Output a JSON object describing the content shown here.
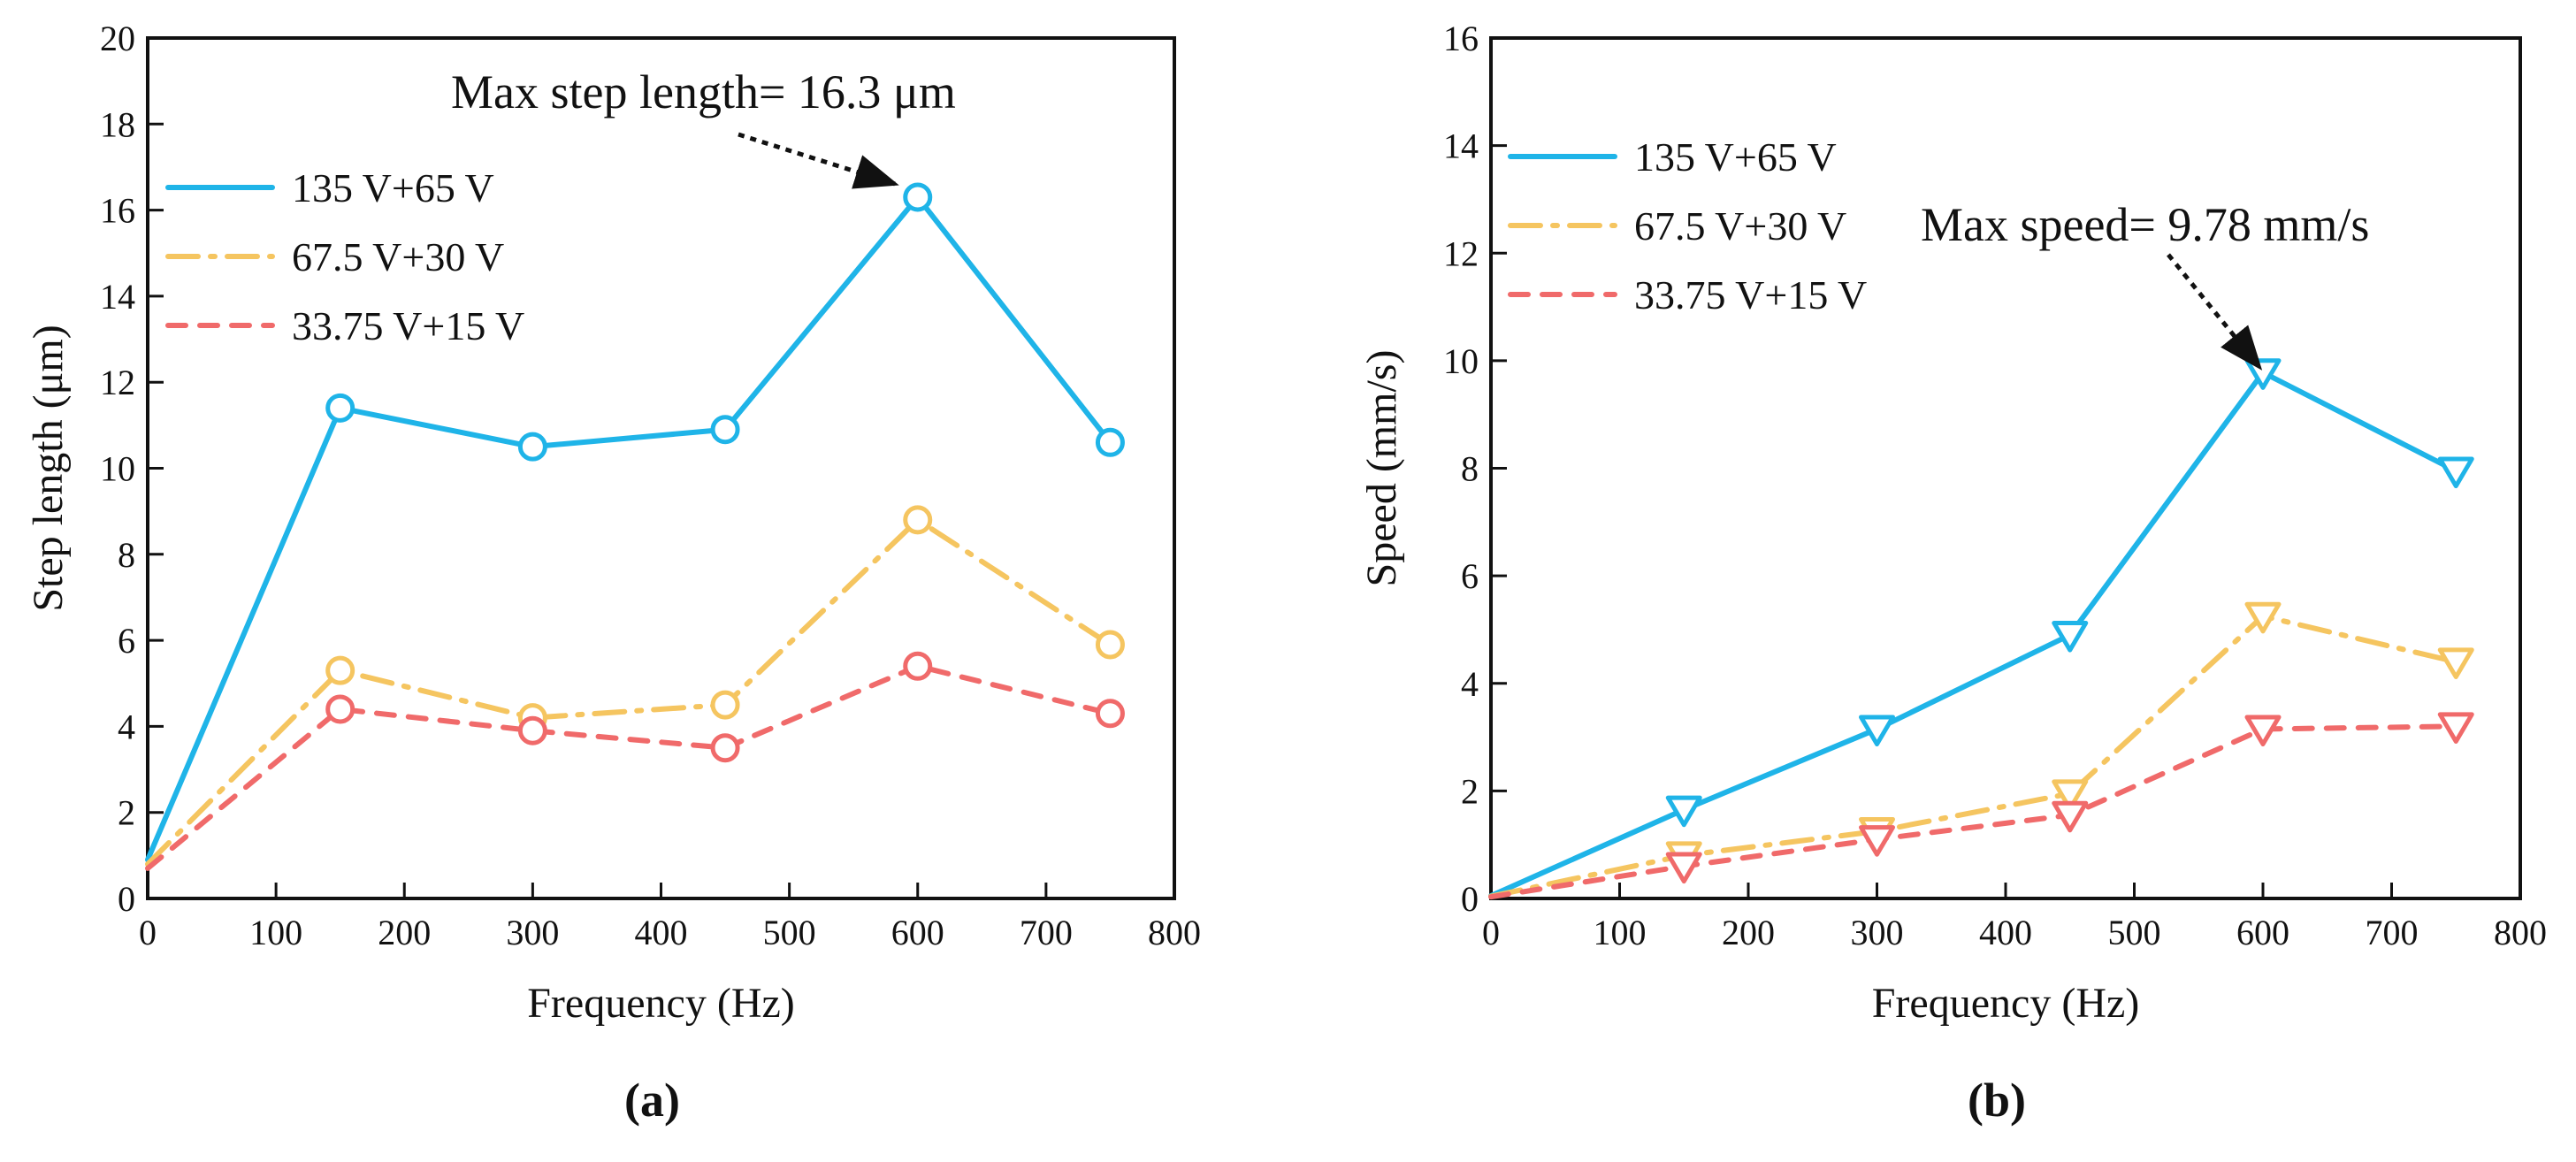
{
  "chart_data": [
    {
      "type": "line",
      "panel_label": "(a)",
      "title": "",
      "xlabel": "Frequency (Hz)",
      "ylabel": "Step length (μm)",
      "xlim": [
        0,
        800
      ],
      "ylim": [
        0,
        20
      ],
      "xticks": [
        "0",
        "100",
        "200",
        "300",
        "400",
        "500",
        "600",
        "700",
        "800"
      ],
      "yticks": [
        "0",
        "2",
        "4",
        "6",
        "8",
        "10",
        "12",
        "14",
        "16",
        "18",
        "20"
      ],
      "x": [
        0,
        150,
        300,
        450,
        600,
        750
      ],
      "marker": "circle",
      "legend_position": "top-left",
      "series": [
        {
          "name": "135 V+65 V",
          "color": "#1fb4e8",
          "style": "solid",
          "values": [
            0.9,
            11.4,
            10.5,
            10.9,
            16.3,
            10.6
          ]
        },
        {
          "name": "67.5 V+30 V",
          "color": "#f5c560",
          "style": "dashdot",
          "values": [
            0.8,
            5.3,
            4.2,
            4.5,
            8.8,
            5.9
          ]
        },
        {
          "name": "33.75 V+15 V",
          "color": "#f06a6a",
          "style": "dashed",
          "values": [
            0.7,
            4.4,
            3.9,
            3.5,
            5.4,
            4.3
          ]
        }
      ],
      "annotation": {
        "text": "Max step length= 16.3 μm",
        "target_x": 600,
        "target_y": 16.3
      }
    },
    {
      "type": "line",
      "panel_label": "(b)",
      "title": "",
      "xlabel": "Frequency (Hz)",
      "ylabel": "Speed (mm/s)",
      "xlim": [
        0,
        800
      ],
      "ylim": [
        0,
        16
      ],
      "xticks": [
        "0",
        "100",
        "200",
        "300",
        "400",
        "500",
        "600",
        "700",
        "800"
      ],
      "yticks": [
        "0",
        "2",
        "4",
        "6",
        "8",
        "10",
        "12",
        "14",
        "16"
      ],
      "x": [
        0,
        150,
        300,
        450,
        600,
        750
      ],
      "marker": "triangle-down",
      "legend_position": "top-left",
      "series": [
        {
          "name": "135 V+65 V",
          "color": "#1fb4e8",
          "style": "solid",
          "values": [
            0.05,
            1.65,
            3.15,
            4.9,
            9.78,
            7.95
          ]
        },
        {
          "name": "67.5 V+30 V",
          "color": "#f5c560",
          "style": "dashdot",
          "values": [
            0.04,
            0.8,
            1.25,
            1.95,
            5.25,
            4.4
          ]
        },
        {
          "name": "33.75 V+15 V",
          "color": "#f06a6a",
          "style": "dashed",
          "values": [
            0.03,
            0.6,
            1.1,
            1.55,
            3.15,
            3.2
          ]
        }
      ],
      "annotation": {
        "text": "Max speed= 9.78 mm/s",
        "target_x": 600,
        "target_y": 9.78
      }
    }
  ]
}
